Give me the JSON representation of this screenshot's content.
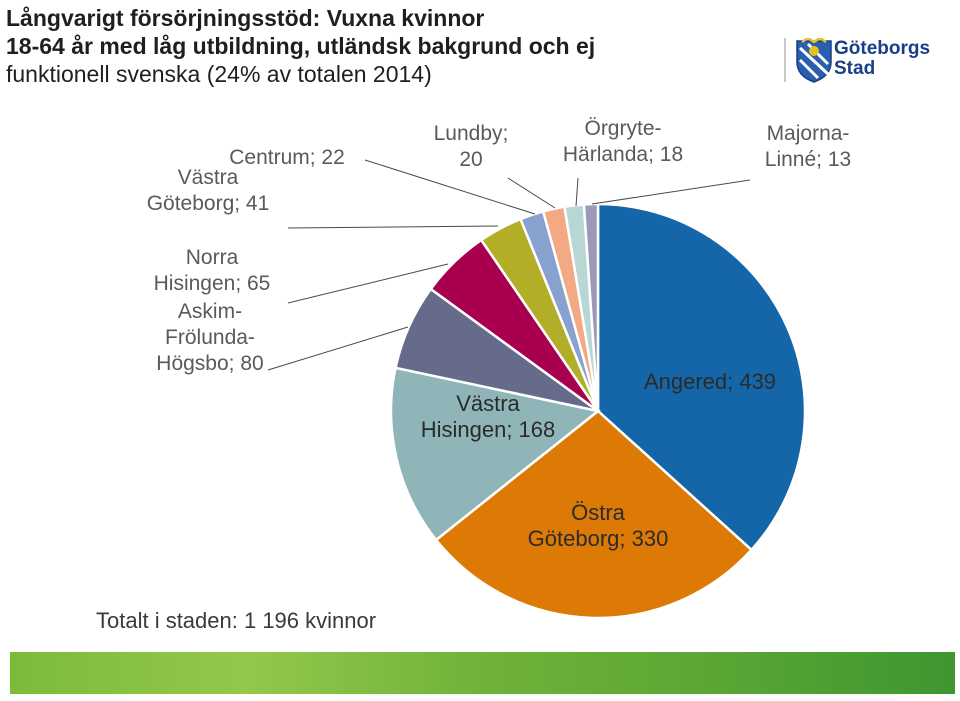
{
  "title": {
    "line1": "Långvarigt försörjningsstöd: Vuxna kvinnor",
    "line2": "18-64 år med låg utbildning, utländsk bakgrund och ej",
    "line3": "funktionell svenska (24% av totalen 2014)"
  },
  "logo": {
    "line1": "Göteborgs",
    "line2": "Stad"
  },
  "total_label": "Totalt i staden: 1 196 kvinnor",
  "chart_data": {
    "type": "pie",
    "title": "Långvarigt försörjningsstöd: Vuxna kvinnor 18-64 år med låg utbildning, utländsk bakgrund och ej funktionell svenska (24% av totalen 2014)",
    "start_angle_deg": 0,
    "direction": "clockwise",
    "slices": [
      {
        "name": "Angered",
        "value": 439,
        "label_lines": [
          "Angered; 439"
        ],
        "color": "#1566a8"
      },
      {
        "name": "Östra Göteborg",
        "value": 330,
        "label_lines": [
          "Östra",
          "Göteborg; 330"
        ],
        "color": "#dd7a06"
      },
      {
        "name": "Västra Hisingen",
        "value": 168,
        "label_lines": [
          "Västra",
          "Hisingen; 168"
        ],
        "color": "#8fb5b8"
      },
      {
        "name": "Askim-Frölunda-Högsbo",
        "value": 80,
        "label_lines": [
          "Askim-",
          "Frölunda-",
          "Högsbo; 80"
        ],
        "color": "#666b8b"
      },
      {
        "name": "Norra Hisingen",
        "value": 65,
        "label_lines": [
          "Norra",
          "Hisingen; 65"
        ],
        "color": "#a8004e"
      },
      {
        "name": "Västra Göteborg",
        "value": 41,
        "label_lines": [
          "Västra",
          "Göteborg; 41"
        ],
        "color": "#b3ae28"
      },
      {
        "name": "Centrum",
        "value": 22,
        "label_lines": [
          "Centrum; 22"
        ],
        "color": "#87a2cf"
      },
      {
        "name": "Lundby",
        "value": 20,
        "label_lines": [
          "Lundby;",
          "20"
        ],
        "color": "#f3a983"
      },
      {
        "name": "Örgryte-Härlanda",
        "value": 18,
        "label_lines": [
          "Örgryte-",
          "Härlanda; 18"
        ],
        "color": "#b7d6d4"
      },
      {
        "name": "Majorna-Linné",
        "value": 13,
        "label_lines": [
          "Majorna-",
          "Linné; 13"
        ],
        "color": "#9a9ab8"
      }
    ]
  }
}
